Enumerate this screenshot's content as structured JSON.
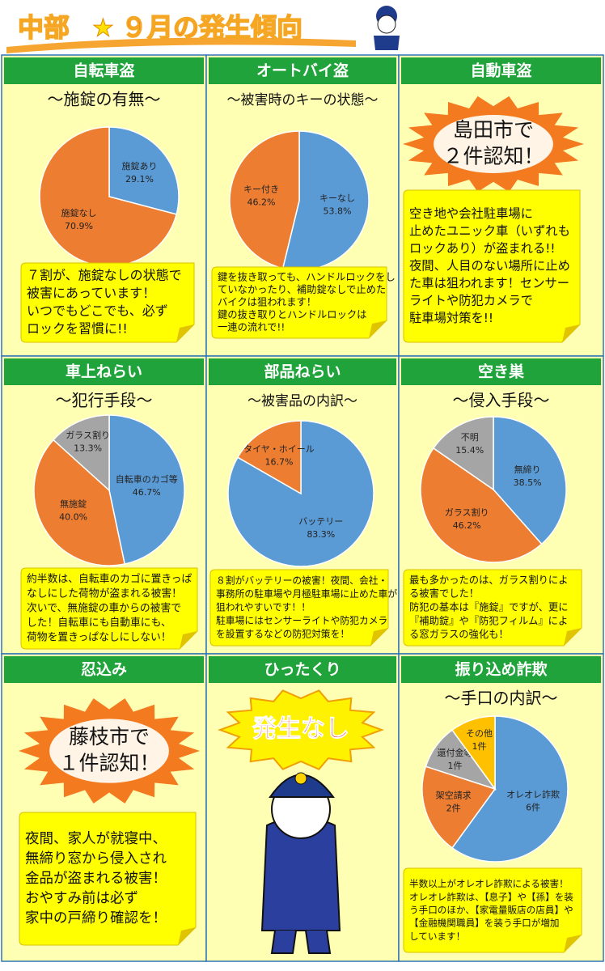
{
  "header": {
    "title_parts": [
      "中部",
      "★",
      "９月の発生傾向"
    ]
  },
  "panels": [
    {
      "title": "自転車盗",
      "subtitle": "～施錠の有無～",
      "chart": {
        "type": "pie",
        "categories": [
          "施錠あり",
          "施錠なし"
        ],
        "values": [
          29.1,
          70.9
        ],
        "value_labels": [
          "29.1%",
          "70.9%"
        ],
        "colors": [
          "#5b9bd5",
          "#ed7d31"
        ]
      },
      "note": [
        "７割が、施錠なしの状態で",
        "被害にあっています！",
        "いつでもどこでも、必ず",
        "ロックを習慣に!!"
      ]
    },
    {
      "title": "オートバイ盗",
      "subtitle": "～被害時のキーの状態～",
      "chart": {
        "type": "pie",
        "categories": [
          "キーなし",
          "キー付き"
        ],
        "values": [
          53.8,
          46.2
        ],
        "value_labels": [
          "53.8%",
          "46.2%"
        ],
        "colors": [
          "#5b9bd5",
          "#ed7d31"
        ]
      },
      "note": [
        "鍵を抜き取っても、ハンドルロックをし",
        "ていなかったり、補助錠なしで止めた",
        "バイクは狙われます！",
        "鍵の抜き取りとハンドルロックは",
        "一連の流れで!!"
      ]
    },
    {
      "title": "自動車盗",
      "burst": [
        "島田市で",
        "２件認知！"
      ],
      "note": [
        "空き地や会社駐車場に",
        "止めたユニック車（いずれも",
        "ロックあり）が盗まれる!!",
        "夜間、人目のない場所に止め",
        "た車は狙われます！センサー",
        "ライトや防犯カメラで",
        "駐車場対策を!!"
      ]
    },
    {
      "title": "車上ねらい",
      "subtitle": "～犯行手段～",
      "chart": {
        "type": "pie",
        "categories": [
          "自転車のカゴ等",
          "無施錠",
          "ガラス割り"
        ],
        "values": [
          46.7,
          40.0,
          13.3
        ],
        "value_labels": [
          "46.7%",
          "40.0%",
          "13.3%"
        ],
        "colors": [
          "#5b9bd5",
          "#ed7d31",
          "#a5a5a5"
        ]
      },
      "note": [
        "約半数は、自転車のカゴに置きっぱ",
        "なしにした荷物が盗まれる被害！",
        "次いで、無施錠の車からの被害で",
        "した！自転車にも自動車にも、",
        "荷物を置きっぱなしにしない！"
      ]
    },
    {
      "title": "部品ねらい",
      "subtitle": "～被害品の内訳～",
      "chart": {
        "type": "pie",
        "categories": [
          "バッテリー",
          "タイヤ・ホイール"
        ],
        "values": [
          83.3,
          16.7
        ],
        "value_labels": [
          "83.3%",
          "16.7%"
        ],
        "colors": [
          "#5b9bd5",
          "#ed7d31"
        ]
      },
      "note": [
        "８割がバッテリーの被害！夜間、会社・",
        "事務所の駐車場や月極駐車場に止めた車が",
        "狙われやすいです！！",
        "駐車場にはセンサーライトや防犯カメラ",
        "を設置するなどの防犯対策を！"
      ]
    },
    {
      "title": "空き巣",
      "subtitle": "～侵入手段～",
      "chart": {
        "type": "pie",
        "categories": [
          "無締り",
          "ガラス割り",
          "不明"
        ],
        "values": [
          38.5,
          46.2,
          15.4
        ],
        "value_labels": [
          "38.5%",
          "46.2%",
          "15.4%"
        ],
        "colors": [
          "#5b9bd5",
          "#ed7d31",
          "#a5a5a5"
        ]
      },
      "note": [
        "最も多かったのは、ガラス割りによ",
        "る被害でした！",
        "防犯の基本は『施錠』ですが、更に",
        "『補助錠』や『防犯フィルム』によ",
        "る窓ガラスの強化も！"
      ]
    },
    {
      "title": "忍込み",
      "burst": [
        "藤枝市で",
        "１件認知！"
      ],
      "note": [
        "夜間、家人が就寝中、",
        "無締り窓から侵入され",
        "金品が盗まれる被害！",
        "おやすみ前は必ず",
        "家中の戸締り確認を！"
      ]
    },
    {
      "title": "ひったくり",
      "burst": [
        "発生なし"
      ]
    },
    {
      "title": "振り込め詐欺",
      "subtitle": "～手口の内訳～",
      "chart": {
        "type": "pie",
        "categories": [
          "オレオレ詐欺",
          "架空請求",
          "還付金等",
          "その他"
        ],
        "values": [
          6,
          2,
          1,
          1
        ],
        "value_labels": [
          "6件",
          "2件",
          "1件",
          "1件"
        ],
        "colors": [
          "#5b9bd5",
          "#ed7d31",
          "#a5a5a5",
          "#ffc000"
        ]
      },
      "note": [
        "半数以上がオレオレ詐欺による被害！",
        "オレオレ詐欺は、【息子】や【孫】を装",
        "う手口のほか、【家電量販店の店員】や",
        "【金融機関職員】を装う手口が増加",
        "しています！"
      ]
    }
  ]
}
